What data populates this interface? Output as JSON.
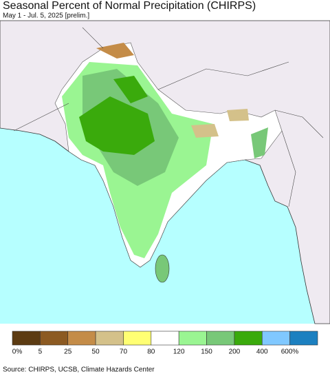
{
  "title": "Seasonal Percent of Normal Precipitation (CHIRPS)",
  "subtitle": "May 1 - Jul. 5, 2025 [prelim.]",
  "legend": {
    "labels": [
      "0%",
      "5",
      "25",
      "50",
      "70",
      "80",
      "120",
      "150",
      "200",
      "400",
      "600%"
    ],
    "colors": [
      "#5c3b12",
      "#8c5a22",
      "#c48c48",
      "#d4c18a",
      "#ffff73",
      "#ffffff",
      "#9af592",
      "#78c878",
      "#3aaa0c",
      "#80c8ff",
      "#1c80c0"
    ]
  },
  "source": "Source: CHIRPS, UCSB, Climate Hazards Center"
}
